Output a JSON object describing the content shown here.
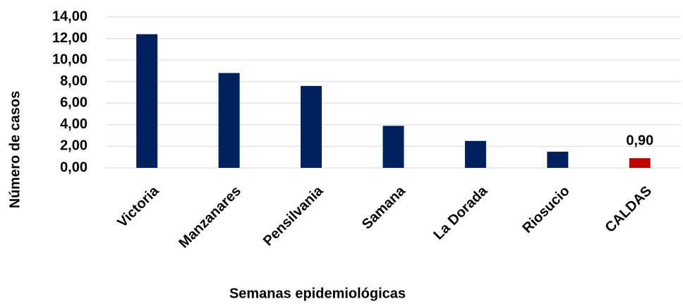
{
  "chart_data": {
    "type": "bar",
    "categories": [
      "Victoria",
      "Manzanares",
      "Pensilvania",
      "Samana",
      "La Dorada",
      "Riosucio",
      "CALDAS"
    ],
    "values": [
      12.4,
      8.8,
      7.6,
      3.9,
      2.5,
      1.5,
      0.9
    ],
    "value_labels": [
      null,
      null,
      null,
      null,
      null,
      null,
      "0,90"
    ],
    "colors": [
      "#002060",
      "#002060",
      "#002060",
      "#002060",
      "#002060",
      "#002060",
      "#c00000"
    ],
    "ylim": [
      0,
      14
    ],
    "yticks": [
      {
        "value": 0,
        "label": "0,00"
      },
      {
        "value": 2,
        "label": "2,00"
      },
      {
        "value": 4,
        "label": "4,00"
      },
      {
        "value": 6,
        "label": "6,00"
      },
      {
        "value": 8,
        "label": "8,00"
      },
      {
        "value": 10,
        "label": "10,00"
      },
      {
        "value": 12,
        "label": "12,00"
      },
      {
        "value": 14,
        "label": "14,00"
      }
    ],
    "xlabel": "Semanas epidemiológicas",
    "ylabel": "Número de casos",
    "grid": true
  }
}
